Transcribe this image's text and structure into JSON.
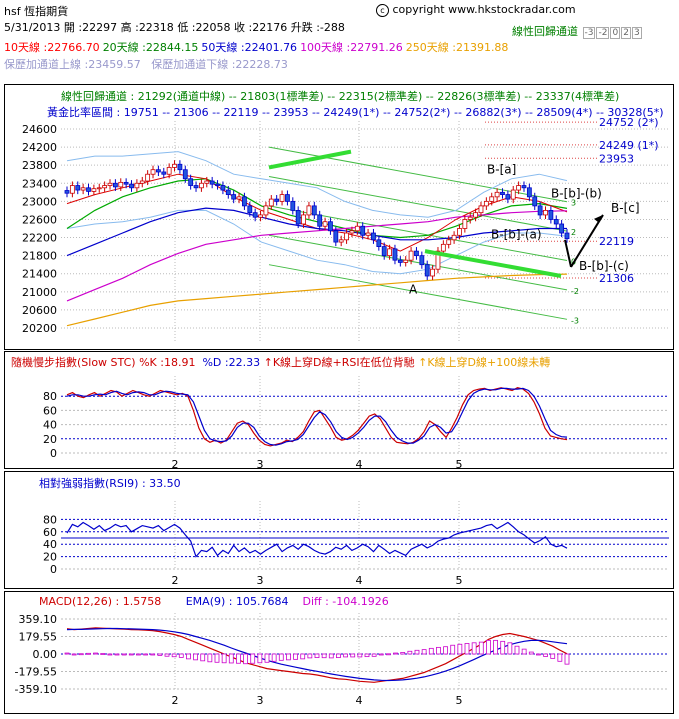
{
  "header": {
    "symbol": "hsf",
    "name": "恆指期貨",
    "copyright": "copyright www.hkstockradar.com",
    "date": "5/31/2013",
    "open_label": "開 :",
    "open": "22297",
    "high_label": "高 :",
    "high": "22318",
    "low_label": "低 :",
    "low": "22058",
    "close_label": "收 :",
    "close": "22176",
    "change_label": "升跌 :",
    "change": "-288",
    "regression_channel_label": "線性回歸通道",
    "regression_channel_legend": [
      "-3",
      "-2",
      "0",
      "2",
      "3"
    ]
  },
  "ma": [
    {
      "label": "10天線 :",
      "value": "22766.70",
      "color": "#ff0000"
    },
    {
      "label": "20天線 :",
      "value": "22844.15",
      "color": "#008000"
    },
    {
      "label": "50天線 :",
      "value": "22401.76",
      "color": "#0000cc"
    },
    {
      "label": "100天線 :",
      "value": "22791.26",
      "color": "#cc00cc"
    },
    {
      "label": "250天線 :",
      "value": "21391.88",
      "color": "#e8a000"
    }
  ],
  "bands": {
    "upper_label": "保歷加通道上線 :",
    "upper": "23459.57",
    "lower_label": "保歷加通道下線 :",
    "lower": "22228.73"
  },
  "regression_line": "線性回歸通道 : 21292(通道中線) -- 21803(1標準差) -- 22315(2標準差) -- 22826(3標準差) -- 23337(4標準差)",
  "fibonacci_line": "黃金比率區間 : 19751 -- 21306 -- 22119 -- 23953 -- 24249(1*) -- 24752(2*) -- 26882(3*) -- 28509(4*) -- 30328(5*)",
  "main_chart": {
    "y_ticks": [
      "24600",
      "24200",
      "23800",
      "23400",
      "23000",
      "22600",
      "22200",
      "21800",
      "21400",
      "21000",
      "20600",
      "20200"
    ],
    "x_ticks": [
      "2",
      "3",
      "4",
      "5"
    ],
    "right_levels": [
      "24752 (2*)",
      "24249 (1*)",
      "23953",
      "22119",
      "21306"
    ],
    "annotations": [
      "B-[a]",
      "B-[b]-(b)",
      "B-[c]",
      "B-[b]-(a)",
      "B-[b]-(c)",
      "A"
    ],
    "channel_marks": [
      "3",
      "2",
      "0",
      "-2",
      "-3"
    ]
  },
  "stc_panel": {
    "title": "隨機慢步指數(Slow STC)",
    "k_label": "%K :",
    "k": "18.91",
    "d_label": "%D :",
    "d": "22.33",
    "signal1": "K線上穿D線+RSI在低位背馳",
    "signal2": "K線上穿D線+100線未轉",
    "y_ticks": [
      "80",
      "60",
      "40",
      "20",
      "0"
    ],
    "x_ticks": [
      "2",
      "3",
      "4",
      "5"
    ]
  },
  "rsi_panel": {
    "title": "相對強弱指數(RSI9)",
    "value_label": ":",
    "value": "33.50",
    "y_ticks": [
      "80",
      "60",
      "40",
      "20",
      "0"
    ],
    "x_ticks": [
      "2",
      "3",
      "4",
      "5"
    ]
  },
  "macd_panel": {
    "title": "MACD(12,26) :",
    "macd": "1.5758",
    "ema_label": "EMA(9) :",
    "ema": "105.7684",
    "diff_label": "Diff :",
    "diff": "-104.1926",
    "y_ticks": [
      "359.10",
      "179.55",
      "0.00",
      "-179.55",
      "-359.10"
    ],
    "x_ticks": [
      "2",
      "3",
      "4",
      "5"
    ]
  },
  "chart_data": [
    {
      "type": "candlestick",
      "title": "hsf 恆指期貨",
      "ylim": [
        20200,
        24600
      ],
      "x_month_ticks": [
        "2",
        "3",
        "4",
        "5"
      ],
      "close_series": [
        23180,
        23350,
        23250,
        23300,
        23220,
        23280,
        23300,
        23350,
        23400,
        23320,
        23420,
        23380,
        23300,
        23400,
        23450,
        23600,
        23700,
        23650,
        23600,
        23750,
        23820,
        23700,
        23500,
        23350,
        23300,
        23400,
        23450,
        23380,
        23350,
        23250,
        23150,
        23050,
        23100,
        22900,
        22750,
        22650,
        22700,
        22900,
        23050,
        23000,
        23150,
        23000,
        22800,
        22500,
        22700,
        22900,
        22700,
        22450,
        22550,
        22350,
        22100,
        22150,
        22300,
        22350,
        22450,
        22250,
        22300,
        22150,
        22000,
        21800,
        21950,
        21700,
        21650,
        21700,
        21900,
        21800,
        21600,
        21350,
        21500,
        21900,
        22050,
        22150,
        22250,
        22400,
        22600,
        22650,
        22750,
        22900,
        23000,
        23100,
        23200,
        23150,
        23050,
        23250,
        23350,
        23300,
        23100,
        22900,
        22700,
        22800,
        22600,
        22500,
        22300,
        22176
      ],
      "levels": {
        "ma10": 22766.7,
        "ma20": 22844.15,
        "ma50": 22401.76,
        "ma100": 22791.26,
        "ma250": 21391.88,
        "boll_upper": 23459.57,
        "boll_lower": 22228.73
      },
      "fib_levels": [
        19751,
        21306,
        22119,
        23953,
        24249,
        24752,
        26882,
        28509,
        30328
      ]
    },
    {
      "type": "line",
      "title": "Slow STC",
      "ylim": [
        0,
        100
      ],
      "series": [
        {
          "name": "%K",
          "values": [
            82,
            85,
            80,
            78,
            82,
            85,
            80,
            84,
            88,
            86,
            80,
            84,
            88,
            85,
            82,
            80,
            84,
            88,
            86,
            84,
            82,
            84,
            80,
            60,
            35,
            20,
            15,
            18,
            14,
            18,
            30,
            42,
            45,
            40,
            28,
            18,
            12,
            10,
            12,
            14,
            18,
            16,
            22,
            30,
            45,
            58,
            60,
            48,
            36,
            22,
            18,
            20,
            25,
            32,
            42,
            52,
            55,
            48,
            35,
            22,
            15,
            14,
            13,
            15,
            20,
            30,
            45,
            40,
            30,
            22,
            35,
            50,
            68,
            82,
            88,
            90,
            91,
            88,
            90,
            92,
            90,
            88,
            92,
            90,
            84,
            72,
            55,
            35,
            24,
            22,
            20,
            18.91
          ]
        },
        {
          "name": "%D",
          "values": [
            80,
            82,
            82,
            80,
            80,
            82,
            83,
            82,
            85,
            87,
            84,
            82,
            85,
            86,
            85,
            82,
            82,
            85,
            87,
            86,
            84,
            83,
            82,
            72,
            52,
            32,
            20,
            17,
            16,
            17,
            24,
            36,
            42,
            42,
            36,
            24,
            16,
            12,
            11,
            13,
            16,
            17,
            19,
            26,
            38,
            50,
            58,
            54,
            44,
            30,
            22,
            19,
            22,
            28,
            36,
            46,
            52,
            52,
            44,
            32,
            22,
            17,
            14,
            14,
            18,
            24,
            36,
            40,
            36,
            28,
            30,
            42,
            58,
            74,
            84,
            88,
            90,
            89,
            89,
            91,
            91,
            90,
            90,
            91,
            88,
            80,
            66,
            48,
            32,
            26,
            23,
            22.33
          ]
        }
      ]
    },
    {
      "type": "line",
      "title": "RSI9",
      "ylim": [
        0,
        100
      ],
      "series": [
        {
          "name": "RSI9",
          "values": [
            58,
            72,
            68,
            75,
            70,
            64,
            70,
            62,
            66,
            72,
            68,
            70,
            60,
            65,
            70,
            68,
            66,
            70,
            62,
            67,
            72,
            66,
            55,
            45,
            20,
            30,
            28,
            35,
            22,
            30,
            25,
            38,
            28,
            34,
            26,
            30,
            24,
            30,
            35,
            40,
            28,
            34,
            38,
            32,
            40,
            36,
            30,
            26,
            24,
            28,
            35,
            32,
            38,
            30,
            34,
            40,
            36,
            28,
            38,
            32,
            25,
            30,
            26,
            22,
            32,
            36,
            40,
            34,
            38,
            45,
            48,
            50,
            55,
            58,
            60,
            62,
            64,
            66,
            70,
            72,
            65,
            70,
            75,
            68,
            60,
            55,
            48,
            42,
            46,
            52,
            40,
            36,
            38,
            33.5
          ]
        }
      ]
    },
    {
      "type": "line",
      "title": "MACD(12,26)",
      "ylim": [
        -359.1,
        359.1
      ],
      "series": [
        {
          "name": "MACD",
          "values": [
            260,
            250,
            255,
            262,
            268,
            265,
            262,
            258,
            255,
            250,
            248,
            245,
            240,
            230,
            215,
            200,
            180,
            150,
            120,
            90,
            60,
            30,
            0,
            -30,
            -60,
            -90,
            -110,
            -130,
            -150,
            -160,
            -170,
            -180,
            -190,
            -200,
            -205,
            -215,
            -230,
            -245,
            -255,
            -260,
            -270,
            -280,
            -285,
            -290,
            -280,
            -270,
            -260,
            -250,
            -230,
            -210,
            -190,
            -160,
            -130,
            -100,
            -60,
            -20,
            20,
            60,
            100,
            150,
            180,
            200,
            210,
            195,
            180,
            160,
            140,
            110,
            80,
            40,
            1.5758
          ]
        },
        {
          "name": "EMA(9)",
          "values": [
            250,
            252,
            252,
            255,
            258,
            260,
            262,
            262,
            260,
            258,
            255,
            252,
            250,
            245,
            238,
            228,
            215,
            200,
            180,
            160,
            140,
            115,
            90,
            62,
            35,
            10,
            -15,
            -40,
            -65,
            -85,
            -105,
            -120,
            -135,
            -150,
            -165,
            -178,
            -192,
            -205,
            -218,
            -230,
            -240,
            -250,
            -258,
            -266,
            -270,
            -272,
            -270,
            -266,
            -258,
            -248,
            -235,
            -218,
            -198,
            -175,
            -150,
            -120,
            -88,
            -55,
            -22,
            10,
            40,
            70,
            95,
            115,
            130,
            140,
            140,
            135,
            125,
            115,
            105.7684
          ]
        },
        {
          "name": "Diff",
          "values": [
            10,
            -2,
            3,
            7,
            10,
            5,
            0,
            -4,
            -5,
            -8,
            -7,
            -7,
            -10,
            -15,
            -23,
            -28,
            -35,
            -50,
            -60,
            -70,
            -80,
            -85,
            -90,
            -92,
            -95,
            -100,
            -95,
            -90,
            -85,
            -75,
            -65,
            -60,
            -55,
            -50,
            -40,
            -37,
            -38,
            -40,
            -37,
            -30,
            -30,
            -30,
            -27,
            -24,
            -10,
            2,
            10,
            16,
            28,
            38,
            45,
            58,
            68,
            75,
            90,
            100,
            108,
            115,
            122,
            140,
            140,
            130,
            115,
            80,
            50,
            20,
            0,
            -25,
            -45,
            -75,
            -104.1926
          ]
        }
      ]
    }
  ]
}
